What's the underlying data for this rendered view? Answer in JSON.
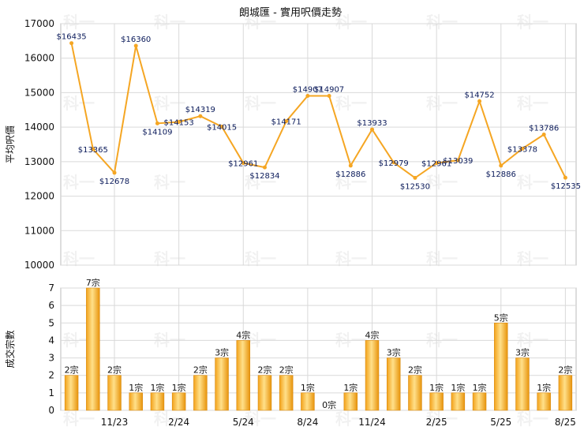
{
  "chart_data": [
    {
      "type": "line",
      "title": "朗城匯 - 實用呎價走勢",
      "ylabel": "平均呎價",
      "ylim": [
        10000,
        17000
      ],
      "yticks": [
        "10000",
        "11000",
        "12000",
        "13000",
        "14000",
        "15000",
        "16000",
        "17000"
      ],
      "grid": true,
      "color": "#f5a623",
      "values": [
        16435,
        13365,
        12678,
        16360,
        14109,
        14153,
        14319,
        14015,
        12961,
        12834,
        14171,
        14907,
        14907,
        12886,
        13933,
        12979,
        12530,
        12961,
        13039,
        14752,
        12886,
        13378,
        13786,
        12535
      ],
      "labels": [
        "$16435",
        "$13365",
        "$12678",
        "$16360",
        "$14109",
        "$14153",
        "$14319",
        "$14015",
        "$12961",
        "$12834",
        "$14171",
        "$14907",
        "$14907",
        "$12886",
        "$13933",
        "$12979",
        "$12530",
        "$12961",
        "$13039",
        "$14752",
        "$12886",
        "$13378",
        "$13786",
        "$12535"
      ]
    },
    {
      "type": "bar",
      "ylabel": "成交宗數",
      "ylim": [
        0,
        7
      ],
      "yticks": [
        "0",
        "1",
        "2",
        "3",
        "4",
        "5",
        "6",
        "7"
      ],
      "grid": true,
      "color": "#f5a623",
      "values": [
        2,
        7,
        2,
        1,
        1,
        1,
        2,
        3,
        4,
        2,
        2,
        1,
        0,
        1,
        4,
        3,
        2,
        1,
        1,
        1,
        5,
        3,
        1,
        2
      ],
      "labels": [
        "2宗",
        "7宗",
        "2宗",
        "1宗",
        "1宗",
        "1宗",
        "2宗",
        "3宗",
        "4宗",
        "2宗",
        "2宗",
        "1宗",
        "0宗",
        "1宗",
        "4宗",
        "3宗",
        "2宗",
        "1宗",
        "1宗",
        "1宗",
        "5宗",
        "3宗",
        "1宗",
        "2宗"
      ],
      "xticks": [
        "11/23",
        "2/24",
        "5/24",
        "8/24",
        "11/24",
        "2/25",
        "5/25",
        "8/25"
      ]
    }
  ],
  "watermark": "科一"
}
